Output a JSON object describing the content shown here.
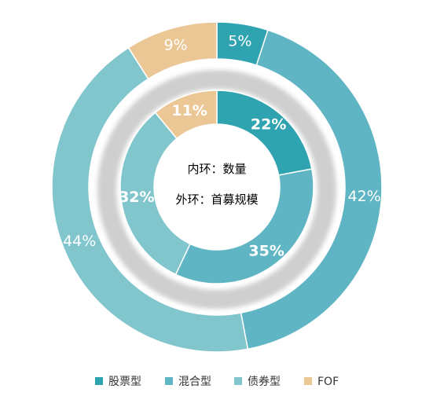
{
  "chart_data": {
    "type": "pie",
    "subtype": "double-donut",
    "categories": [
      "股票型",
      "混合型",
      "债券型",
      "FOF"
    ],
    "colors": [
      "#2fa3b0",
      "#5fb5c3",
      "#82c6cd",
      "#ecc796"
    ],
    "series": [
      {
        "ring": "outer",
        "values": [
          5,
          42,
          44,
          9
        ],
        "labels": [
          "5%",
          "42%",
          "44%",
          "9%"
        ]
      },
      {
        "ring": "inner",
        "values": [
          22,
          35,
          32,
          11
        ],
        "labels": [
          "22%",
          "35%",
          "32%",
          "11%"
        ]
      }
    ],
    "center_text": [
      "内环：数量",
      "外环：首募规模"
    ],
    "legend": {
      "position": "bottom",
      "items": [
        "股票型",
        "混合型",
        "债券型",
        "FOF"
      ]
    }
  }
}
